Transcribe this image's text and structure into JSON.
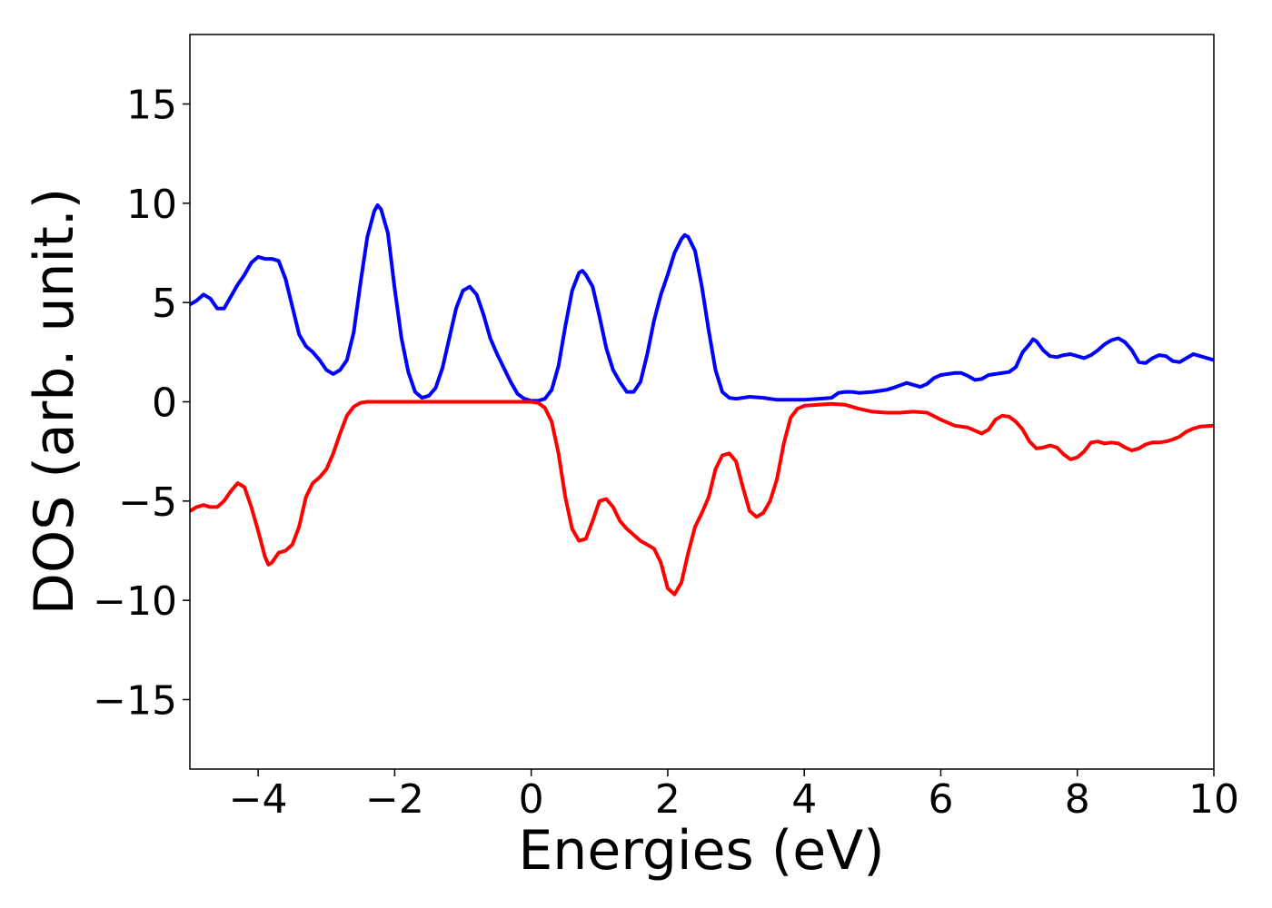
{
  "chart_data": {
    "type": "line",
    "title": "",
    "xlabel": "Energies (eV)",
    "ylabel": "DOS (arb. unit.)",
    "xlim": [
      -5,
      10
    ],
    "ylim": [
      -18.5,
      18.5
    ],
    "grid": false,
    "legend": "none",
    "xticks": [
      -4,
      -2,
      0,
      2,
      4,
      6,
      8,
      10
    ],
    "xtick_labels": [
      "−4",
      "−2",
      "0",
      "2",
      "4",
      "6",
      "8",
      "10"
    ],
    "yticks": [
      -15,
      -10,
      -5,
      0,
      5,
      10,
      15
    ],
    "ytick_labels": [
      "−15",
      "−10",
      "−5",
      "0",
      "5",
      "10",
      "15"
    ],
    "series": [
      {
        "color": "#0000ff",
        "points": [
          [
            -5.0,
            4.9
          ],
          [
            -4.9,
            5.1
          ],
          [
            -4.8,
            5.4
          ],
          [
            -4.7,
            5.2
          ],
          [
            -4.6,
            4.7
          ],
          [
            -4.5,
            4.7
          ],
          [
            -4.4,
            5.3
          ],
          [
            -4.3,
            5.9
          ],
          [
            -4.2,
            6.4
          ],
          [
            -4.1,
            7.0
          ],
          [
            -4.0,
            7.3
          ],
          [
            -3.9,
            7.2
          ],
          [
            -3.8,
            7.2
          ],
          [
            -3.7,
            7.1
          ],
          [
            -3.6,
            6.2
          ],
          [
            -3.5,
            4.8
          ],
          [
            -3.4,
            3.4
          ],
          [
            -3.3,
            2.8
          ],
          [
            -3.2,
            2.5
          ],
          [
            -3.1,
            2.1
          ],
          [
            -3.0,
            1.6
          ],
          [
            -2.9,
            1.4
          ],
          [
            -2.8,
            1.6
          ],
          [
            -2.7,
            2.1
          ],
          [
            -2.6,
            3.5
          ],
          [
            -2.5,
            6.0
          ],
          [
            -2.4,
            8.3
          ],
          [
            -2.3,
            9.6
          ],
          [
            -2.25,
            9.9
          ],
          [
            -2.2,
            9.7
          ],
          [
            -2.1,
            8.5
          ],
          [
            -2.0,
            5.7
          ],
          [
            -1.9,
            3.2
          ],
          [
            -1.8,
            1.5
          ],
          [
            -1.7,
            0.5
          ],
          [
            -1.6,
            0.2
          ],
          [
            -1.5,
            0.3
          ],
          [
            -1.4,
            0.7
          ],
          [
            -1.3,
            1.7
          ],
          [
            -1.2,
            3.2
          ],
          [
            -1.1,
            4.7
          ],
          [
            -1.0,
            5.6
          ],
          [
            -0.9,
            5.8
          ],
          [
            -0.8,
            5.4
          ],
          [
            -0.7,
            4.4
          ],
          [
            -0.6,
            3.2
          ],
          [
            -0.5,
            2.4
          ],
          [
            -0.4,
            1.7
          ],
          [
            -0.3,
            1.0
          ],
          [
            -0.2,
            0.4
          ],
          [
            -0.1,
            0.15
          ],
          [
            0.0,
            0.05
          ],
          [
            0.1,
            0.05
          ],
          [
            0.2,
            0.15
          ],
          [
            0.3,
            0.6
          ],
          [
            0.4,
            1.8
          ],
          [
            0.5,
            3.8
          ],
          [
            0.6,
            5.6
          ],
          [
            0.7,
            6.5
          ],
          [
            0.75,
            6.6
          ],
          [
            0.8,
            6.4
          ],
          [
            0.9,
            5.8
          ],
          [
            1.0,
            4.3
          ],
          [
            1.1,
            2.7
          ],
          [
            1.2,
            1.6
          ],
          [
            1.3,
            1.0
          ],
          [
            1.4,
            0.5
          ],
          [
            1.5,
            0.5
          ],
          [
            1.6,
            1.0
          ],
          [
            1.7,
            2.4
          ],
          [
            1.8,
            4.1
          ],
          [
            1.9,
            5.4
          ],
          [
            2.0,
            6.4
          ],
          [
            2.1,
            7.5
          ],
          [
            2.2,
            8.2
          ],
          [
            2.25,
            8.4
          ],
          [
            2.3,
            8.3
          ],
          [
            2.4,
            7.6
          ],
          [
            2.5,
            5.8
          ],
          [
            2.6,
            3.6
          ],
          [
            2.7,
            1.6
          ],
          [
            2.8,
            0.5
          ],
          [
            2.9,
            0.2
          ],
          [
            3.0,
            0.15
          ],
          [
            3.2,
            0.25
          ],
          [
            3.4,
            0.2
          ],
          [
            3.6,
            0.1
          ],
          [
            3.8,
            0.1
          ],
          [
            4.0,
            0.1
          ],
          [
            4.2,
            0.15
          ],
          [
            4.4,
            0.2
          ],
          [
            4.5,
            0.45
          ],
          [
            4.6,
            0.5
          ],
          [
            4.7,
            0.5
          ],
          [
            4.8,
            0.45
          ],
          [
            5.0,
            0.5
          ],
          [
            5.2,
            0.6
          ],
          [
            5.3,
            0.7
          ],
          [
            5.5,
            0.95
          ],
          [
            5.6,
            0.85
          ],
          [
            5.7,
            0.75
          ],
          [
            5.8,
            0.9
          ],
          [
            5.9,
            1.2
          ],
          [
            6.0,
            1.35
          ],
          [
            6.2,
            1.45
          ],
          [
            6.3,
            1.45
          ],
          [
            6.4,
            1.3
          ],
          [
            6.5,
            1.1
          ],
          [
            6.6,
            1.15
          ],
          [
            6.7,
            1.35
          ],
          [
            6.8,
            1.4
          ],
          [
            7.0,
            1.5
          ],
          [
            7.1,
            1.75
          ],
          [
            7.2,
            2.5
          ],
          [
            7.3,
            2.9
          ],
          [
            7.35,
            3.15
          ],
          [
            7.4,
            3.05
          ],
          [
            7.5,
            2.6
          ],
          [
            7.6,
            2.3
          ],
          [
            7.7,
            2.25
          ],
          [
            7.8,
            2.35
          ],
          [
            7.9,
            2.4
          ],
          [
            8.0,
            2.3
          ],
          [
            8.1,
            2.2
          ],
          [
            8.2,
            2.35
          ],
          [
            8.3,
            2.6
          ],
          [
            8.4,
            2.9
          ],
          [
            8.5,
            3.1
          ],
          [
            8.6,
            3.2
          ],
          [
            8.7,
            3.0
          ],
          [
            8.8,
            2.6
          ],
          [
            8.9,
            2.0
          ],
          [
            9.0,
            1.95
          ],
          [
            9.1,
            2.2
          ],
          [
            9.2,
            2.35
          ],
          [
            9.3,
            2.3
          ],
          [
            9.4,
            2.05
          ],
          [
            9.5,
            2.0
          ],
          [
            9.6,
            2.2
          ],
          [
            9.7,
            2.4
          ],
          [
            9.8,
            2.3
          ],
          [
            10.0,
            2.1
          ]
        ]
      },
      {
        "color": "#ff0000",
        "points": [
          [
            -5.0,
            -5.5
          ],
          [
            -4.9,
            -5.3
          ],
          [
            -4.8,
            -5.2
          ],
          [
            -4.7,
            -5.3
          ],
          [
            -4.6,
            -5.3
          ],
          [
            -4.5,
            -5.0
          ],
          [
            -4.4,
            -4.5
          ],
          [
            -4.3,
            -4.1
          ],
          [
            -4.2,
            -4.3
          ],
          [
            -4.1,
            -5.3
          ],
          [
            -4.0,
            -6.5
          ],
          [
            -3.9,
            -7.8
          ],
          [
            -3.85,
            -8.2
          ],
          [
            -3.8,
            -8.1
          ],
          [
            -3.7,
            -7.6
          ],
          [
            -3.6,
            -7.5
          ],
          [
            -3.5,
            -7.2
          ],
          [
            -3.4,
            -6.3
          ],
          [
            -3.3,
            -4.8
          ],
          [
            -3.2,
            -4.1
          ],
          [
            -3.1,
            -3.8
          ],
          [
            -3.0,
            -3.4
          ],
          [
            -2.9,
            -2.6
          ],
          [
            -2.8,
            -1.6
          ],
          [
            -2.7,
            -0.7
          ],
          [
            -2.6,
            -0.25
          ],
          [
            -2.5,
            -0.05
          ],
          [
            -2.4,
            0.0
          ],
          [
            -2.0,
            0.0
          ],
          [
            -1.0,
            0.0
          ],
          [
            0.0,
            0.0
          ],
          [
            0.1,
            -0.05
          ],
          [
            0.2,
            -0.3
          ],
          [
            0.3,
            -1.0
          ],
          [
            0.4,
            -2.6
          ],
          [
            0.5,
            -4.8
          ],
          [
            0.6,
            -6.4
          ],
          [
            0.7,
            -7.0
          ],
          [
            0.8,
            -6.9
          ],
          [
            0.9,
            -6.0
          ],
          [
            1.0,
            -5.0
          ],
          [
            1.1,
            -4.9
          ],
          [
            1.2,
            -5.3
          ],
          [
            1.3,
            -6.0
          ],
          [
            1.4,
            -6.4
          ],
          [
            1.5,
            -6.7
          ],
          [
            1.6,
            -7.0
          ],
          [
            1.7,
            -7.2
          ],
          [
            1.8,
            -7.4
          ],
          [
            1.9,
            -8.1
          ],
          [
            2.0,
            -9.4
          ],
          [
            2.1,
            -9.7
          ],
          [
            2.2,
            -9.1
          ],
          [
            2.3,
            -7.6
          ],
          [
            2.4,
            -6.3
          ],
          [
            2.5,
            -5.6
          ],
          [
            2.6,
            -4.8
          ],
          [
            2.7,
            -3.4
          ],
          [
            2.8,
            -2.7
          ],
          [
            2.9,
            -2.6
          ],
          [
            3.0,
            -3.0
          ],
          [
            3.1,
            -4.3
          ],
          [
            3.2,
            -5.5
          ],
          [
            3.3,
            -5.8
          ],
          [
            3.4,
            -5.6
          ],
          [
            3.5,
            -5.0
          ],
          [
            3.6,
            -3.9
          ],
          [
            3.7,
            -2.1
          ],
          [
            3.8,
            -0.8
          ],
          [
            3.9,
            -0.35
          ],
          [
            4.0,
            -0.2
          ],
          [
            4.2,
            -0.15
          ],
          [
            4.4,
            -0.1
          ],
          [
            4.6,
            -0.15
          ],
          [
            4.8,
            -0.35
          ],
          [
            5.0,
            -0.5
          ],
          [
            5.2,
            -0.55
          ],
          [
            5.4,
            -0.55
          ],
          [
            5.6,
            -0.5
          ],
          [
            5.8,
            -0.55
          ],
          [
            6.0,
            -0.9
          ],
          [
            6.2,
            -1.2
          ],
          [
            6.4,
            -1.3
          ],
          [
            6.6,
            -1.6
          ],
          [
            6.7,
            -1.4
          ],
          [
            6.8,
            -0.9
          ],
          [
            6.9,
            -0.7
          ],
          [
            7.0,
            -0.75
          ],
          [
            7.1,
            -1.0
          ],
          [
            7.2,
            -1.4
          ],
          [
            7.3,
            -2.0
          ],
          [
            7.4,
            -2.35
          ],
          [
            7.5,
            -2.3
          ],
          [
            7.6,
            -2.2
          ],
          [
            7.7,
            -2.3
          ],
          [
            7.8,
            -2.65
          ],
          [
            7.9,
            -2.9
          ],
          [
            8.0,
            -2.8
          ],
          [
            8.1,
            -2.5
          ],
          [
            8.2,
            -2.05
          ],
          [
            8.3,
            -2.0
          ],
          [
            8.4,
            -2.1
          ],
          [
            8.5,
            -2.05
          ],
          [
            8.6,
            -2.1
          ],
          [
            8.7,
            -2.3
          ],
          [
            8.8,
            -2.45
          ],
          [
            8.9,
            -2.35
          ],
          [
            9.0,
            -2.15
          ],
          [
            9.1,
            -2.05
          ],
          [
            9.2,
            -2.05
          ],
          [
            9.3,
            -2.0
          ],
          [
            9.4,
            -1.9
          ],
          [
            9.5,
            -1.75
          ],
          [
            9.6,
            -1.5
          ],
          [
            9.7,
            -1.35
          ],
          [
            9.8,
            -1.25
          ],
          [
            10.0,
            -1.2
          ]
        ]
      }
    ]
  }
}
